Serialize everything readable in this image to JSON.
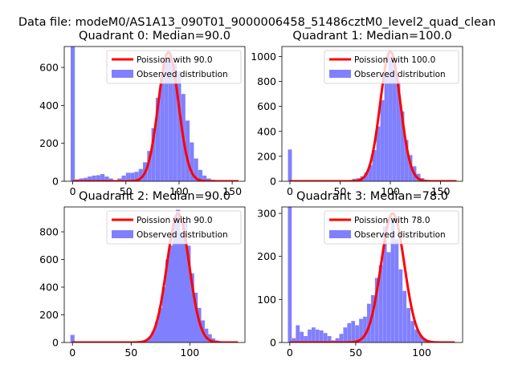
{
  "suptitle": "Data file: modeM0/AS1A13_090T01_9000006458_51486cztM0_level2_quad_clean",
  "legend": {
    "observed_label": "Observed distribution"
  },
  "colors": {
    "hist": "#8080ff",
    "poisson": "#ff0000"
  },
  "chart_data": [
    {
      "type": "bar",
      "title": "Quadrant 0: Median=90.0",
      "xlim": [
        -8,
        162
      ],
      "ylim": [
        0,
        710
      ],
      "xticks": [
        0,
        50,
        100,
        150
      ],
      "yticks": [
        0,
        200,
        400,
        600
      ],
      "poisson": {
        "label": "Poission with 90.0",
        "mean": 90,
        "peak": 680
      },
      "bin_width": 3.9,
      "bins": [
        {
          "x": 0,
          "y": 710
        },
        {
          "x": 4,
          "y": 10
        },
        {
          "x": 8,
          "y": 15
        },
        {
          "x": 12,
          "y": 18
        },
        {
          "x": 16,
          "y": 25
        },
        {
          "x": 20,
          "y": 30
        },
        {
          "x": 24,
          "y": 32
        },
        {
          "x": 28,
          "y": 38
        },
        {
          "x": 32,
          "y": 25
        },
        {
          "x": 36,
          "y": 15
        },
        {
          "x": 40,
          "y": 5
        },
        {
          "x": 44,
          "y": 15
        },
        {
          "x": 48,
          "y": 30
        },
        {
          "x": 52,
          "y": 45
        },
        {
          "x": 56,
          "y": 45
        },
        {
          "x": 60,
          "y": 50
        },
        {
          "x": 64,
          "y": 65
        },
        {
          "x": 68,
          "y": 100
        },
        {
          "x": 72,
          "y": 160
        },
        {
          "x": 76,
          "y": 280
        },
        {
          "x": 80,
          "y": 440
        },
        {
          "x": 84,
          "y": 560
        },
        {
          "x": 88,
          "y": 640
        },
        {
          "x": 92,
          "y": 660
        },
        {
          "x": 96,
          "y": 620
        },
        {
          "x": 100,
          "y": 580
        },
        {
          "x": 104,
          "y": 460
        },
        {
          "x": 108,
          "y": 320
        },
        {
          "x": 112,
          "y": 205
        },
        {
          "x": 116,
          "y": 120
        },
        {
          "x": 120,
          "y": 60
        },
        {
          "x": 124,
          "y": 30
        },
        {
          "x": 128,
          "y": 15
        },
        {
          "x": 132,
          "y": 8
        },
        {
          "x": 136,
          "y": 5
        },
        {
          "x": 140,
          "y": 3
        }
      ]
    },
    {
      "type": "bar",
      "title": "Quadrant 1: Median=100.0",
      "xlim": [
        -8,
        172
      ],
      "ylim": [
        0,
        1080
      ],
      "xticks": [
        0,
        50,
        100,
        150
      ],
      "yticks": [
        0,
        200,
        400,
        600,
        800,
        1000
      ],
      "poisson": {
        "label": "Poission with 100.0",
        "mean": 100,
        "peak": 1040
      },
      "bin_width": 3.9,
      "bins": [
        {
          "x": 0,
          "y": 255
        },
        {
          "x": 60,
          "y": 10
        },
        {
          "x": 64,
          "y": 20
        },
        {
          "x": 68,
          "y": 25
        },
        {
          "x": 72,
          "y": 40
        },
        {
          "x": 76,
          "y": 70
        },
        {
          "x": 80,
          "y": 130
        },
        {
          "x": 84,
          "y": 250
        },
        {
          "x": 88,
          "y": 440
        },
        {
          "x": 92,
          "y": 650
        },
        {
          "x": 96,
          "y": 880
        },
        {
          "x": 100,
          "y": 1000
        },
        {
          "x": 104,
          "y": 960
        },
        {
          "x": 108,
          "y": 800
        },
        {
          "x": 112,
          "y": 560
        },
        {
          "x": 116,
          "y": 330
        },
        {
          "x": 120,
          "y": 210
        },
        {
          "x": 124,
          "y": 120
        },
        {
          "x": 128,
          "y": 60
        },
        {
          "x": 132,
          "y": 25
        },
        {
          "x": 136,
          "y": 10
        },
        {
          "x": 140,
          "y": 5
        }
      ]
    },
    {
      "type": "bar",
      "title": "Quadrant 2: Median=90.0",
      "xlim": [
        -7,
        147
      ],
      "ylim": [
        0,
        980
      ],
      "xticks": [
        0,
        50,
        100
      ],
      "yticks": [
        0,
        200,
        400,
        600,
        800
      ],
      "poisson": {
        "label": "Poission with 90.0",
        "mean": 90,
        "peak": 930
      },
      "bin_width": 3.5,
      "bins": [
        {
          "x": 0,
          "y": 55
        },
        {
          "x": 60,
          "y": 10
        },
        {
          "x": 63,
          "y": 20
        },
        {
          "x": 66,
          "y": 40
        },
        {
          "x": 69,
          "y": 80
        },
        {
          "x": 72,
          "y": 150
        },
        {
          "x": 75,
          "y": 250
        },
        {
          "x": 78,
          "y": 400
        },
        {
          "x": 81,
          "y": 600
        },
        {
          "x": 84,
          "y": 700
        },
        {
          "x": 87,
          "y": 900
        },
        {
          "x": 90,
          "y": 960
        },
        {
          "x": 93,
          "y": 760
        },
        {
          "x": 96,
          "y": 880
        },
        {
          "x": 99,
          "y": 700
        },
        {
          "x": 102,
          "y": 500
        },
        {
          "x": 105,
          "y": 360
        },
        {
          "x": 108,
          "y": 250
        },
        {
          "x": 111,
          "y": 160
        },
        {
          "x": 114,
          "y": 100
        },
        {
          "x": 117,
          "y": 60
        },
        {
          "x": 120,
          "y": 30
        },
        {
          "x": 123,
          "y": 15
        },
        {
          "x": 126,
          "y": 5
        }
      ]
    },
    {
      "type": "bar",
      "title": "Quadrant 3: Median=78.0",
      "xlim": [
        -6,
        131
      ],
      "ylim": [
        0,
        315
      ],
      "xticks": [
        0,
        50,
        100
      ],
      "yticks": [
        0,
        100,
        200,
        300
      ],
      "poisson": {
        "label": "Poission with 78.0",
        "mean": 78,
        "peak": 300
      },
      "bin_width": 2.9,
      "bins": [
        {
          "x": 0,
          "y": 315
        },
        {
          "x": 3,
          "y": 10
        },
        {
          "x": 6,
          "y": 40
        },
        {
          "x": 9,
          "y": 25
        },
        {
          "x": 12,
          "y": 15
        },
        {
          "x": 15,
          "y": 30
        },
        {
          "x": 18,
          "y": 35
        },
        {
          "x": 21,
          "y": 30
        },
        {
          "x": 24,
          "y": 28
        },
        {
          "x": 27,
          "y": 22
        },
        {
          "x": 30,
          "y": 15
        },
        {
          "x": 33,
          "y": 5
        },
        {
          "x": 36,
          "y": 10
        },
        {
          "x": 39,
          "y": 20
        },
        {
          "x": 42,
          "y": 35
        },
        {
          "x": 45,
          "y": 45
        },
        {
          "x": 48,
          "y": 50
        },
        {
          "x": 51,
          "y": 40
        },
        {
          "x": 54,
          "y": 55
        },
        {
          "x": 57,
          "y": 60
        },
        {
          "x": 60,
          "y": 90
        },
        {
          "x": 63,
          "y": 110
        },
        {
          "x": 66,
          "y": 150
        },
        {
          "x": 69,
          "y": 180
        },
        {
          "x": 72,
          "y": 270
        },
        {
          "x": 75,
          "y": 210
        },
        {
          "x": 78,
          "y": 290
        },
        {
          "x": 81,
          "y": 240
        },
        {
          "x": 84,
          "y": 170
        },
        {
          "x": 87,
          "y": 120
        },
        {
          "x": 90,
          "y": 80
        },
        {
          "x": 93,
          "y": 50
        },
        {
          "x": 96,
          "y": 30
        },
        {
          "x": 99,
          "y": 18
        },
        {
          "x": 102,
          "y": 10
        },
        {
          "x": 105,
          "y": 5
        }
      ]
    }
  ]
}
